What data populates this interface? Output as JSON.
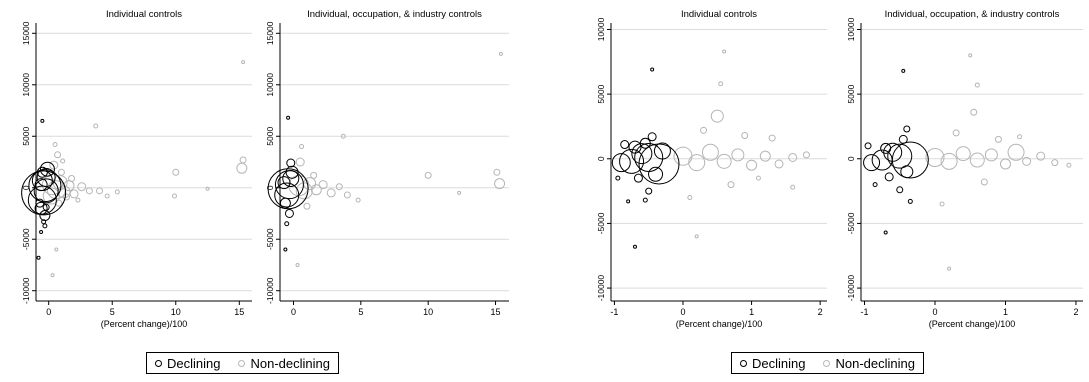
{
  "colors": {
    "declining": "#000000",
    "non_declining": "#b5b5b5",
    "grid": "#dcdcdc",
    "axis": "#000000"
  },
  "figure_groups": [
    {
      "legend": [
        {
          "label": "Declining",
          "color": "#000000"
        },
        {
          "label": "Non-declining",
          "color": "#b5b5b5"
        }
      ]
    },
    {
      "legend": [
        {
          "label": "Declining",
          "color": "#000000"
        },
        {
          "label": "Non-declining",
          "color": "#b5b5b5"
        }
      ]
    }
  ],
  "chart_data": [
    {
      "type": "scatter",
      "title": "Individual controls",
      "xlabel": "(Percent change)/100",
      "ylabel": "",
      "xlim": [
        -1,
        16
      ],
      "ylim": [
        -11000,
        16000
      ],
      "xticks": [
        0,
        5,
        10,
        15
      ],
      "xtick_labels": [
        "0",
        "5",
        "10",
        "15"
      ],
      "yticks": [
        -10000,
        -5000,
        0,
        5000,
        10000,
        15000
      ],
      "ytick_labels": [
        "-10000",
        "-5000",
        "0",
        "5000",
        "10000",
        "15000"
      ],
      "grid": true,
      "series": [
        {
          "name": "Declining",
          "points": [
            {
              "x": -0.4,
              "y": -500,
              "size": 22
            },
            {
              "x": -0.3,
              "y": 200,
              "size": 16
            },
            {
              "x": -0.5,
              "y": -1200,
              "size": 14
            },
            {
              "x": -0.2,
              "y": 1000,
              "size": 9
            },
            {
              "x": -0.1,
              "y": 1800,
              "size": 7
            },
            {
              "x": -0.6,
              "y": -2000,
              "size": 6
            },
            {
              "x": -0.3,
              "y": -2700,
              "size": 5
            },
            {
              "x": -0.7,
              "y": -1500,
              "size": 4
            },
            {
              "x": -0.5,
              "y": 700,
              "size": 10
            },
            {
              "x": -0.2,
              "y": -300,
              "size": 12
            },
            {
              "x": -0.6,
              "y": 300,
              "size": 6
            },
            {
              "x": -0.4,
              "y": -3300,
              "size": 2
            },
            {
              "x": -0.8,
              "y": -6800,
              "size": 1.5
            },
            {
              "x": -0.5,
              "y": 6500,
              "size": 1.5
            },
            {
              "x": -0.3,
              "y": -3700,
              "size": 2
            },
            {
              "x": -0.6,
              "y": -4300,
              "size": 1.5
            },
            {
              "x": -0.2,
              "y": -1900,
              "size": 3
            },
            {
              "x": -0.5,
              "y": 1500,
              "size": 5
            }
          ]
        },
        {
          "name": "Non-declining",
          "points": [
            {
              "x": 0.3,
              "y": 300,
              "size": 10
            },
            {
              "x": 0.6,
              "y": -200,
              "size": 9
            },
            {
              "x": 0.9,
              "y": 500,
              "size": 7
            },
            {
              "x": 1.2,
              "y": -400,
              "size": 6
            },
            {
              "x": 1.6,
              "y": 200,
              "size": 5
            },
            {
              "x": 2.0,
              "y": -600,
              "size": 4
            },
            {
              "x": 2.6,
              "y": 100,
              "size": 4
            },
            {
              "x": 3.2,
              "y": -300,
              "size": 3
            },
            {
              "x": 0.4,
              "y": 2200,
              "size": 4
            },
            {
              "x": 0.7,
              "y": 3200,
              "size": 3
            },
            {
              "x": 0.5,
              "y": 4200,
              "size": 2
            },
            {
              "x": 1.0,
              "y": 1500,
              "size": 3
            },
            {
              "x": 0.8,
              "y": -1500,
              "size": 3
            },
            {
              "x": 1.4,
              "y": -900,
              "size": 3
            },
            {
              "x": 3.7,
              "y": 6000,
              "size": 2
            },
            {
              "x": 4.0,
              "y": -300,
              "size": 3
            },
            {
              "x": 4.6,
              "y": -800,
              "size": 2
            },
            {
              "x": 5.4,
              "y": -400,
              "size": 2
            },
            {
              "x": 10.0,
              "y": 1500,
              "size": 3
            },
            {
              "x": 9.9,
              "y": -800,
              "size": 2
            },
            {
              "x": 12.5,
              "y": -100,
              "size": 1.5
            },
            {
              "x": 15.2,
              "y": 1900,
              "size": 5
            },
            {
              "x": 15.3,
              "y": 2700,
              "size": 3
            },
            {
              "x": 15.3,
              "y": 12200,
              "size": 1.5
            },
            {
              "x": 0.2,
              "y": -800,
              "size": 8
            },
            {
              "x": 1.8,
              "y": 900,
              "size": 3
            },
            {
              "x": 2.3,
              "y": -1200,
              "size": 2
            },
            {
              "x": 0.6,
              "y": -6000,
              "size": 1.5
            },
            {
              "x": 0.3,
              "y": -8500,
              "size": 1.5
            },
            {
              "x": 1.1,
              "y": 2600,
              "size": 2
            }
          ]
        }
      ]
    },
    {
      "type": "scatter",
      "title": "Individual, occupation, & industry controls",
      "xlabel": "",
      "ylabel": "",
      "xlim": [
        -1,
        16
      ],
      "ylim": [
        -11000,
        16000
      ],
      "xticks": [
        0,
        5,
        10,
        15
      ],
      "xtick_labels": [
        "0",
        "5",
        "10",
        "15"
      ],
      "yticks": [
        -10000,
        -5000,
        0,
        5000,
        10000,
        15000
      ],
      "ytick_labels": [
        "-10000",
        "-5000",
        "0",
        "5000",
        "10000",
        "15000"
      ],
      "grid": true,
      "series": [
        {
          "name": "Declining",
          "points": [
            {
              "x": -0.4,
              "y": -100,
              "size": 20
            },
            {
              "x": -0.3,
              "y": 300,
              "size": 14
            },
            {
              "x": -0.5,
              "y": -700,
              "size": 12
            },
            {
              "x": -0.2,
              "y": 900,
              "size": 8
            },
            {
              "x": -0.1,
              "y": 1500,
              "size": 6
            },
            {
              "x": -0.6,
              "y": -1500,
              "size": 5
            },
            {
              "x": -0.3,
              "y": -2500,
              "size": 4
            },
            {
              "x": -0.2,
              "y": 2400,
              "size": 4
            },
            {
              "x": -0.5,
              "y": -3500,
              "size": 2
            },
            {
              "x": -0.6,
              "y": -6000,
              "size": 1.5
            },
            {
              "x": -0.4,
              "y": 6800,
              "size": 1.5
            },
            {
              "x": -0.7,
              "y": 500,
              "size": 6
            }
          ]
        },
        {
          "name": "Non-declining",
          "points": [
            {
              "x": 0.4,
              "y": 200,
              "size": 10
            },
            {
              "x": 0.8,
              "y": -300,
              "size": 8
            },
            {
              "x": 1.2,
              "y": 400,
              "size": 6
            },
            {
              "x": 1.7,
              "y": -200,
              "size": 5
            },
            {
              "x": 2.2,
              "y": 300,
              "size": 4
            },
            {
              "x": 2.8,
              "y": -500,
              "size": 4
            },
            {
              "x": 3.4,
              "y": 100,
              "size": 3
            },
            {
              "x": 4.0,
              "y": -700,
              "size": 3
            },
            {
              "x": 0.5,
              "y": 2500,
              "size": 4
            },
            {
              "x": 0.6,
              "y": 4000,
              "size": 2
            },
            {
              "x": 3.7,
              "y": 5000,
              "size": 2
            },
            {
              "x": 4.8,
              "y": -1200,
              "size": 2
            },
            {
              "x": 10.0,
              "y": 1200,
              "size": 3
            },
            {
              "x": 12.3,
              "y": -500,
              "size": 1.5
            },
            {
              "x": 15.1,
              "y": 1500,
              "size": 3
            },
            {
              "x": 15.3,
              "y": 400,
              "size": 5
            },
            {
              "x": 15.4,
              "y": 13000,
              "size": 1.5
            },
            {
              "x": 1.0,
              "y": -1800,
              "size": 3
            },
            {
              "x": 0.3,
              "y": -7500,
              "size": 1.5
            },
            {
              "x": 1.5,
              "y": 1200,
              "size": 3
            }
          ]
        }
      ]
    },
    {
      "type": "scatter",
      "title": "Individual controls",
      "xlabel": "(Percent change)/100",
      "ylabel": "",
      "xlim": [
        -1.05,
        2.1
      ],
      "ylim": [
        -11000,
        10500
      ],
      "xticks": [
        -1,
        0,
        1,
        2
      ],
      "xtick_labels": [
        "-1",
        "0",
        "1",
        "2"
      ],
      "yticks": [
        -10000,
        -5000,
        0,
        5000,
        10000
      ],
      "ytick_labels": [
        "-10000",
        "-5000",
        "0",
        "5000",
        "10000"
      ],
      "grid": true,
      "series": [
        {
          "name": "Declining",
          "points": [
            {
              "x": -0.35,
              "y": -400,
              "size": 20
            },
            {
              "x": -0.5,
              "y": 100,
              "size": 14
            },
            {
              "x": -0.75,
              "y": -200,
              "size": 12
            },
            {
              "x": -0.6,
              "y": 400,
              "size": 10
            },
            {
              "x": -0.9,
              "y": -300,
              "size": 9
            },
            {
              "x": -0.4,
              "y": -1200,
              "size": 7
            },
            {
              "x": -0.7,
              "y": 900,
              "size": 6
            },
            {
              "x": -0.55,
              "y": 1200,
              "size": 5
            },
            {
              "x": -0.85,
              "y": 1100,
              "size": 4
            },
            {
              "x": -0.45,
              "y": 1700,
              "size": 4
            },
            {
              "x": -0.65,
              "y": -1500,
              "size": 4
            },
            {
              "x": -0.5,
              "y": -2500,
              "size": 3
            },
            {
              "x": -0.55,
              "y": -3200,
              "size": 2
            },
            {
              "x": -0.8,
              "y": -3300,
              "size": 1.5
            },
            {
              "x": -0.95,
              "y": -1500,
              "size": 2
            },
            {
              "x": -0.7,
              "y": -6800,
              "size": 1.5
            },
            {
              "x": -0.45,
              "y": 6900,
              "size": 1.5
            },
            {
              "x": -0.3,
              "y": 600,
              "size": 8
            }
          ]
        },
        {
          "name": "Non-declining",
          "points": [
            {
              "x": 0.0,
              "y": 200,
              "size": 9
            },
            {
              "x": 0.2,
              "y": -300,
              "size": 8
            },
            {
              "x": 0.4,
              "y": 500,
              "size": 8
            },
            {
              "x": 0.6,
              "y": -200,
              "size": 7
            },
            {
              "x": 0.8,
              "y": 300,
              "size": 6
            },
            {
              "x": 1.0,
              "y": -500,
              "size": 5
            },
            {
              "x": 1.2,
              "y": 200,
              "size": 5
            },
            {
              "x": 1.4,
              "y": -400,
              "size": 4
            },
            {
              "x": 1.6,
              "y": 100,
              "size": 4
            },
            {
              "x": 1.8,
              "y": 300,
              "size": 3
            },
            {
              "x": 0.55,
              "y": 5800,
              "size": 2
            },
            {
              "x": 0.6,
              "y": 8300,
              "size": 1.5
            },
            {
              "x": 0.5,
              "y": 3300,
              "size": 6
            },
            {
              "x": 0.3,
              "y": 2200,
              "size": 3
            },
            {
              "x": 0.9,
              "y": 1800,
              "size": 3
            },
            {
              "x": 0.7,
              "y": -2000,
              "size": 3
            },
            {
              "x": 1.1,
              "y": -1500,
              "size": 2
            },
            {
              "x": 0.1,
              "y": -3000,
              "size": 2
            },
            {
              "x": 1.6,
              "y": -2200,
              "size": 2
            },
            {
              "x": 0.2,
              "y": -6000,
              "size": 1.5
            },
            {
              "x": 1.3,
              "y": 1600,
              "size": 3
            }
          ]
        }
      ]
    },
    {
      "type": "scatter",
      "title": "Individual, occupation, & industry controls",
      "xlabel": "(Percent change)/100",
      "ylabel": "",
      "xlim": [
        -1.05,
        2.1
      ],
      "ylim": [
        -11000,
        10500
      ],
      "xticks": [
        -1,
        0,
        1,
        2
      ],
      "xtick_labels": [
        "-1",
        "0",
        "1",
        "2"
      ],
      "yticks": [
        -10000,
        -5000,
        0,
        5000,
        10000
      ],
      "ytick_labels": [
        "-10000",
        "-5000",
        "0",
        "5000",
        "10000"
      ],
      "grid": true,
      "series": [
        {
          "name": "Declining",
          "points": [
            {
              "x": -0.35,
              "y": -100,
              "size": 18
            },
            {
              "x": -0.5,
              "y": 200,
              "size": 12
            },
            {
              "x": -0.75,
              "y": -100,
              "size": 10
            },
            {
              "x": -0.6,
              "y": 500,
              "size": 9
            },
            {
              "x": -0.9,
              "y": -300,
              "size": 8
            },
            {
              "x": -0.4,
              "y": -1000,
              "size": 6
            },
            {
              "x": -0.7,
              "y": 800,
              "size": 5
            },
            {
              "x": -0.45,
              "y": 1500,
              "size": 4
            },
            {
              "x": -0.4,
              "y": 2300,
              "size": 3
            },
            {
              "x": -0.65,
              "y": -1400,
              "size": 4
            },
            {
              "x": -0.5,
              "y": -2400,
              "size": 3
            },
            {
              "x": -0.35,
              "y": -3300,
              "size": 2
            },
            {
              "x": -0.85,
              "y": -2000,
              "size": 2
            },
            {
              "x": -0.45,
              "y": 6800,
              "size": 1.5
            },
            {
              "x": -0.7,
              "y": -5700,
              "size": 1.5
            },
            {
              "x": -0.95,
              "y": 1000,
              "size": 3
            }
          ]
        },
        {
          "name": "Non-declining",
          "points": [
            {
              "x": 0.0,
              "y": 100,
              "size": 9
            },
            {
              "x": 0.2,
              "y": -200,
              "size": 8
            },
            {
              "x": 0.4,
              "y": 400,
              "size": 7
            },
            {
              "x": 0.6,
              "y": -100,
              "size": 7
            },
            {
              "x": 0.8,
              "y": 300,
              "size": 6
            },
            {
              "x": 1.0,
              "y": -400,
              "size": 5
            },
            {
              "x": 1.15,
              "y": 500,
              "size": 8
            },
            {
              "x": 1.3,
              "y": -200,
              "size": 4
            },
            {
              "x": 1.5,
              "y": 200,
              "size": 4
            },
            {
              "x": 1.7,
              "y": -300,
              "size": 3
            },
            {
              "x": 0.6,
              "y": 5700,
              "size": 2
            },
            {
              "x": 0.55,
              "y": 3600,
              "size": 3
            },
            {
              "x": 0.5,
              "y": 8000,
              "size": 1.5
            },
            {
              "x": 0.3,
              "y": 2000,
              "size": 3
            },
            {
              "x": 0.9,
              "y": 1500,
              "size": 3
            },
            {
              "x": 0.7,
              "y": -1800,
              "size": 3
            },
            {
              "x": 1.9,
              "y": -500,
              "size": 2
            },
            {
              "x": 0.1,
              "y": -3500,
              "size": 2
            },
            {
              "x": 0.2,
              "y": -8500,
              "size": 1.5
            },
            {
              "x": 1.2,
              "y": 1700,
              "size": 2
            }
          ]
        }
      ]
    }
  ]
}
